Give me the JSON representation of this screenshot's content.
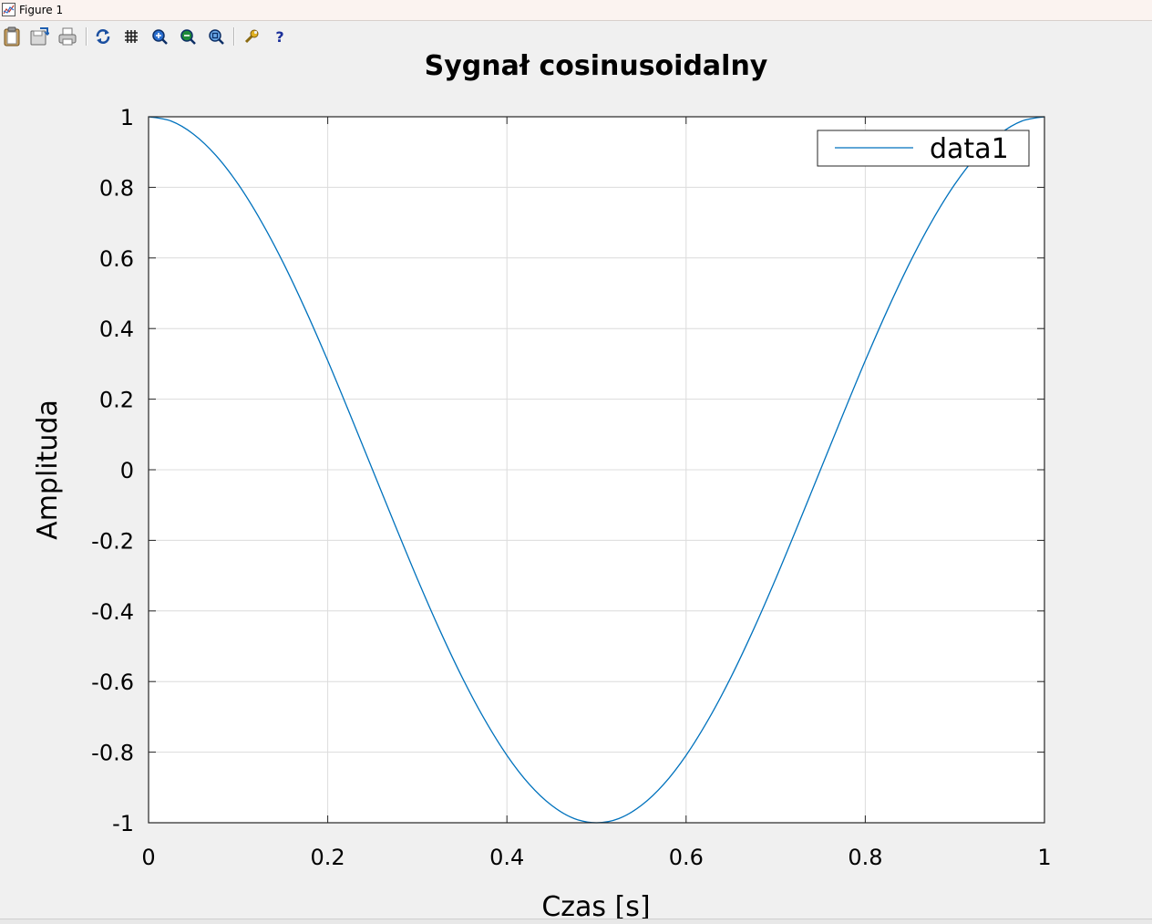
{
  "window": {
    "title": "Figure 1"
  },
  "toolbar": {
    "buttons": [
      {
        "icon": "clipboard-icon"
      },
      {
        "icon": "save-icon"
      },
      {
        "icon": "print-icon"
      },
      {
        "icon": "refresh-icon"
      },
      {
        "icon": "grid-icon"
      },
      {
        "icon": "zoom-in-icon"
      },
      {
        "icon": "zoom-out-icon"
      },
      {
        "icon": "zoom-reset-icon"
      },
      {
        "icon": "wrench-icon"
      },
      {
        "icon": "help-icon"
      }
    ]
  },
  "colors": {
    "series": "#0072bd",
    "grid": "#dcdcdc",
    "background": "#f0f0f0",
    "plot_area": "#ffffff"
  },
  "chart_data": {
    "type": "line",
    "title": "Sygnał cosinusoidalny",
    "xlabel": "Czas [s]",
    "ylabel": "Amplituda",
    "xlim": [
      0,
      1
    ],
    "ylim": [
      -1,
      1
    ],
    "xticks": [
      "0",
      "0.2",
      "0.4",
      "0.6",
      "0.8",
      "1"
    ],
    "yticks": [
      "1",
      "0.8",
      "0.6",
      "0.4",
      "0.2",
      "0",
      "-0.2",
      "-0.4",
      "-0.6",
      "-0.8",
      "-1"
    ],
    "grid": true,
    "legend": {
      "position": "top-right",
      "entries": [
        "data1"
      ]
    },
    "series": [
      {
        "name": "data1",
        "x": [
          0,
          0.025,
          0.05,
          0.075,
          0.1,
          0.125,
          0.15,
          0.175,
          0.2,
          0.225,
          0.25,
          0.275,
          0.3,
          0.325,
          0.35,
          0.375,
          0.4,
          0.425,
          0.45,
          0.475,
          0.5,
          0.525,
          0.55,
          0.575,
          0.6,
          0.625,
          0.65,
          0.675,
          0.7,
          0.725,
          0.75,
          0.775,
          0.8,
          0.825,
          0.85,
          0.875,
          0.9,
          0.925,
          0.95,
          0.975,
          1
        ],
        "y": [
          1,
          0.988,
          0.951,
          0.891,
          0.809,
          0.707,
          0.588,
          0.454,
          0.309,
          0.156,
          0,
          -0.156,
          -0.309,
          -0.454,
          -0.588,
          -0.707,
          -0.809,
          -0.891,
          -0.951,
          -0.988,
          -1,
          -0.988,
          -0.951,
          -0.891,
          -0.809,
          -0.707,
          -0.588,
          -0.454,
          -0.309,
          -0.156,
          0,
          0.156,
          0.309,
          0.454,
          0.588,
          0.707,
          0.809,
          0.891,
          0.951,
          0.988,
          1
        ]
      }
    ]
  }
}
